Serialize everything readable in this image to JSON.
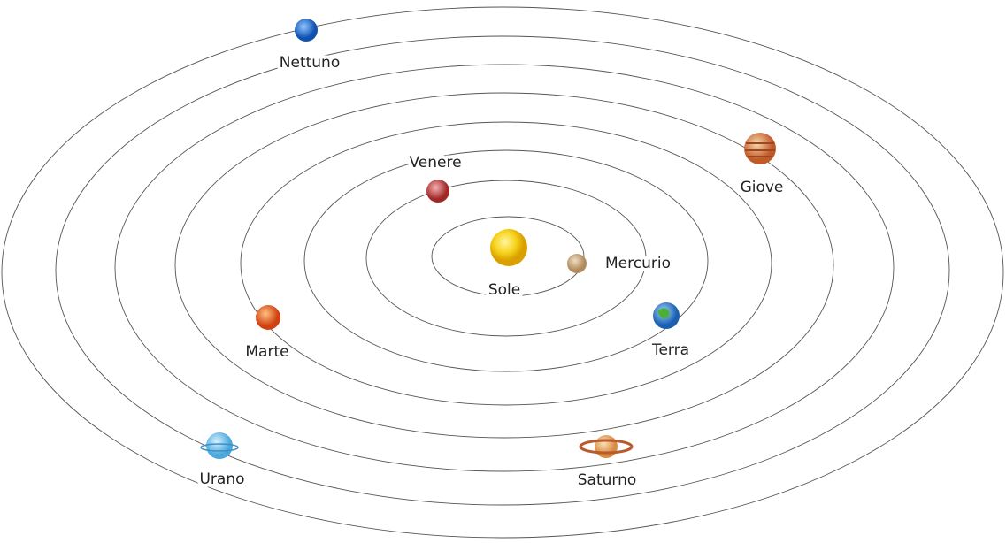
{
  "planets": [
    {
      "label": "Sole"
    },
    {
      "label": "Mercurio"
    },
    {
      "label": "Venere"
    },
    {
      "label": "Terra"
    },
    {
      "label": "Marte"
    },
    {
      "label": "Giove"
    },
    {
      "label": "Saturno"
    },
    {
      "label": "Urano"
    },
    {
      "label": "Nettuno"
    }
  ]
}
